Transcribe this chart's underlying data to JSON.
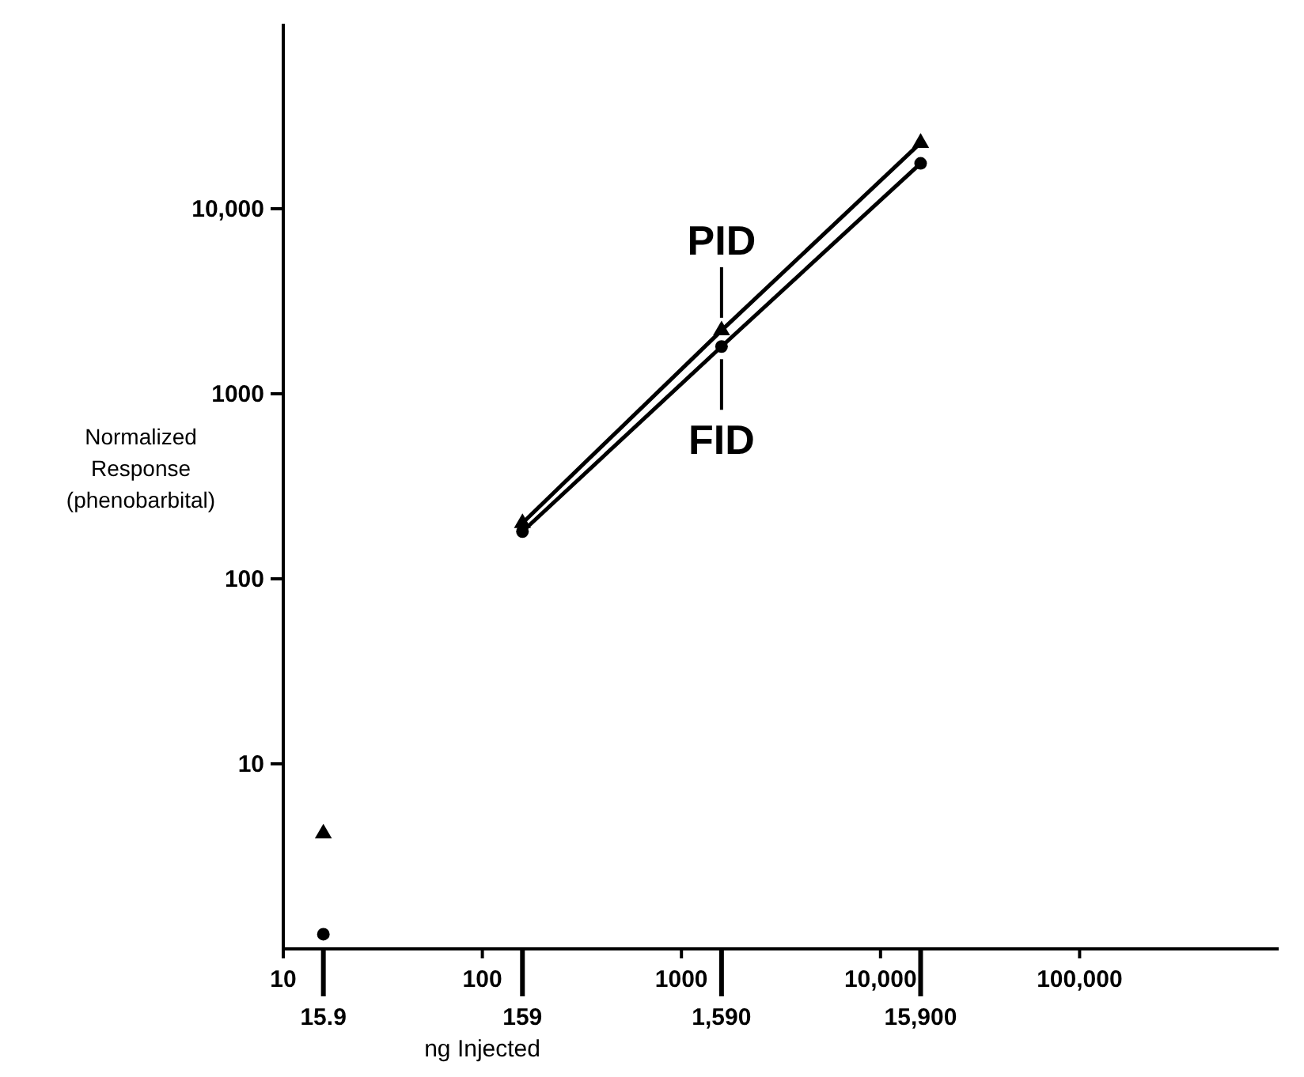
{
  "chart_data": {
    "type": "line",
    "xlabel": "ng Injected",
    "ylabel": "Normalized\nResponse\n(phenobarbital)",
    "log": "xy",
    "xlim": [
      10,
      1000000
    ],
    "ylim": [
      1,
      100000
    ],
    "xticks": [
      10,
      100,
      1000,
      {
        "value": 10000,
        "label": "10,000"
      },
      {
        "value": 100000,
        "label": "100,000"
      }
    ],
    "yticks": [
      10,
      100,
      1000,
      {
        "value": 10000,
        "label": "10,000"
      }
    ],
    "series": [
      {
        "name": "PID",
        "color": "#000000",
        "marker": "triangle",
        "x": [
          159,
          1590,
          15900
        ],
        "values": [
          200,
          2200,
          22700
        ]
      },
      {
        "name": "FID",
        "color": "#000000",
        "marker": "circle",
        "x": [
          159,
          1590,
          15900
        ],
        "values": [
          180,
          1800,
          17600
        ]
      },
      {
        "type": "scatter",
        "color": "#000000",
        "marker": "triangle",
        "x": [
          15.9
        ],
        "values": [
          4.2
        ]
      },
      {
        "type": "scatter",
        "color": "#000000",
        "marker": "circle",
        "x": [
          15.9
        ],
        "values": [
          1.2
        ]
      }
    ],
    "annotations": [
      {
        "text": "15.9",
        "x": 15.9
      },
      {
        "text": "159",
        "x": 159
      },
      {
        "text": "1,590",
        "x": 1590
      },
      {
        "text": "15,900",
        "x": 15900
      }
    ],
    "grid": false,
    "line_style": "solid"
  }
}
